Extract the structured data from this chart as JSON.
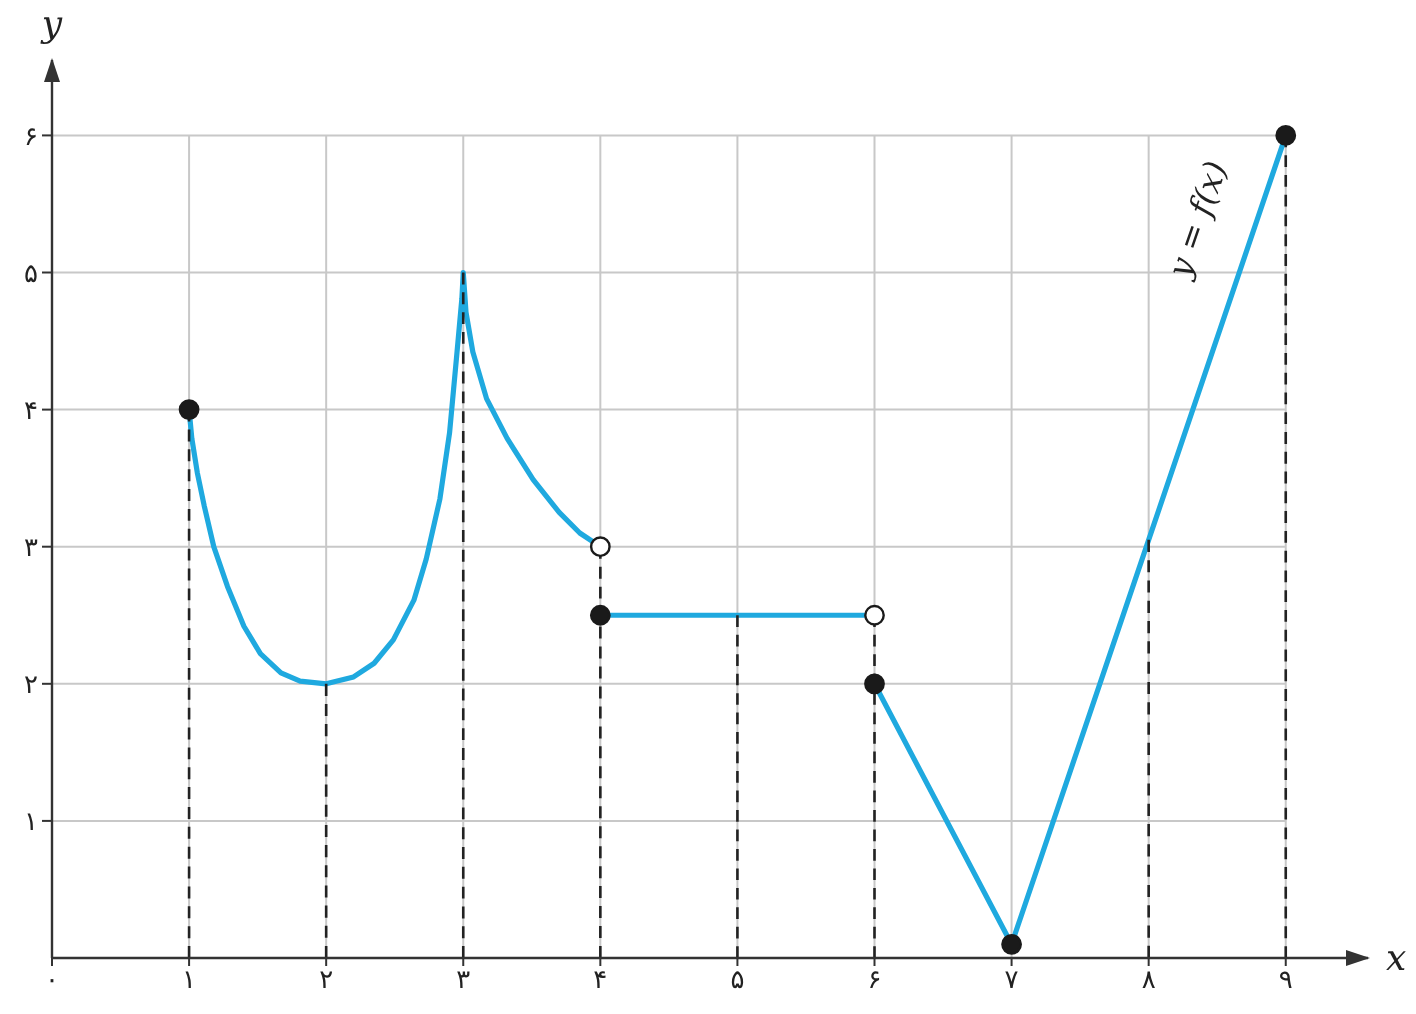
{
  "chart_data": {
    "type": "line",
    "xlabel": "x",
    "ylabel": "y",
    "xlim": [
      0,
      9.6
    ],
    "ylim": [
      0,
      6.55
    ],
    "xticks": [
      {
        "value": 0,
        "label": "۰"
      },
      {
        "value": 1,
        "label": "۱"
      },
      {
        "value": 2,
        "label": "۲"
      },
      {
        "value": 3,
        "label": "۳"
      },
      {
        "value": 4,
        "label": "۴"
      },
      {
        "value": 5,
        "label": "۵"
      },
      {
        "value": 6,
        "label": "۶"
      },
      {
        "value": 7,
        "label": "۷"
      },
      {
        "value": 8,
        "label": "۸"
      },
      {
        "value": 9,
        "label": "۹"
      }
    ],
    "yticks": [
      {
        "value": 1,
        "label": "۱"
      },
      {
        "value": 2,
        "label": "۲"
      },
      {
        "value": 3,
        "label": "۳"
      },
      {
        "value": 4,
        "label": "۴"
      },
      {
        "value": 5,
        "label": "۵"
      },
      {
        "value": 6,
        "label": "۶"
      }
    ],
    "grid": true,
    "annotations": [
      "y = f(x)"
    ],
    "series": [
      {
        "color": "#1fa9df",
        "x": [
          1,
          1.02,
          1.06,
          1.11,
          1.18,
          1.28,
          1.4,
          1.52,
          1.67,
          1.81,
          2,
          2.2,
          2.35,
          2.49,
          2.64,
          2.73,
          2.83,
          2.9,
          2.95,
          2.99,
          3,
          3.02,
          3.07,
          3.17,
          3.32,
          3.51,
          3.7,
          3.85,
          4
        ],
        "values": [
          4,
          3.79,
          3.54,
          3.3,
          3,
          2.71,
          2.42,
          2.22,
          2.08,
          2.02,
          2,
          2.05,
          2.15,
          2.32,
          2.61,
          2.91,
          3.35,
          3.83,
          4.37,
          4.81,
          5,
          4.71,
          4.42,
          4.08,
          3.79,
          3.49,
          3.25,
          3.1,
          3
        ]
      },
      {
        "color": "#1fa9df",
        "x": [
          4,
          6
        ],
        "values": [
          2.5,
          2.5
        ]
      },
      {
        "color": "#1fa9df",
        "x": [
          6,
          7,
          9
        ],
        "values": [
          2,
          0.1,
          6
        ]
      },
      {
        "line_style": "dashed",
        "color": "#222222",
        "x": [
          1,
          1
        ],
        "values": [
          0,
          4
        ]
      },
      {
        "line_style": "dashed",
        "color": "#222222",
        "x": [
          2,
          2
        ],
        "values": [
          0,
          2
        ]
      },
      {
        "line_style": "dashed",
        "color": "#222222",
        "x": [
          3,
          3
        ],
        "values": [
          0,
          5
        ]
      },
      {
        "line_style": "dashed",
        "color": "#222222",
        "x": [
          4,
          4
        ],
        "values": [
          0,
          3
        ]
      },
      {
        "line_style": "dashed",
        "color": "#222222",
        "x": [
          5,
          5
        ],
        "values": [
          0,
          2.5
        ]
      },
      {
        "line_style": "dashed",
        "color": "#222222",
        "x": [
          6,
          6
        ],
        "values": [
          0,
          2.5
        ]
      },
      {
        "line_style": "dashed",
        "color": "#222222",
        "x": [
          8,
          8
        ],
        "values": [
          0,
          3.05
        ]
      },
      {
        "line_style": "dashed",
        "color": "#222222",
        "x": [
          9,
          9
        ],
        "values": [
          0,
          6
        ]
      },
      {
        "type": "scatter",
        "marker": "circle",
        "color": "#1a1a1a",
        "x": [
          1,
          4,
          6,
          7,
          9
        ],
        "values": [
          4,
          2.5,
          2,
          0.1,
          6
        ]
      },
      {
        "type": "scatter",
        "marker": "circle",
        "color": "#ffffff",
        "x": [
          4,
          6
        ],
        "values": [
          3,
          2.5
        ]
      }
    ]
  }
}
